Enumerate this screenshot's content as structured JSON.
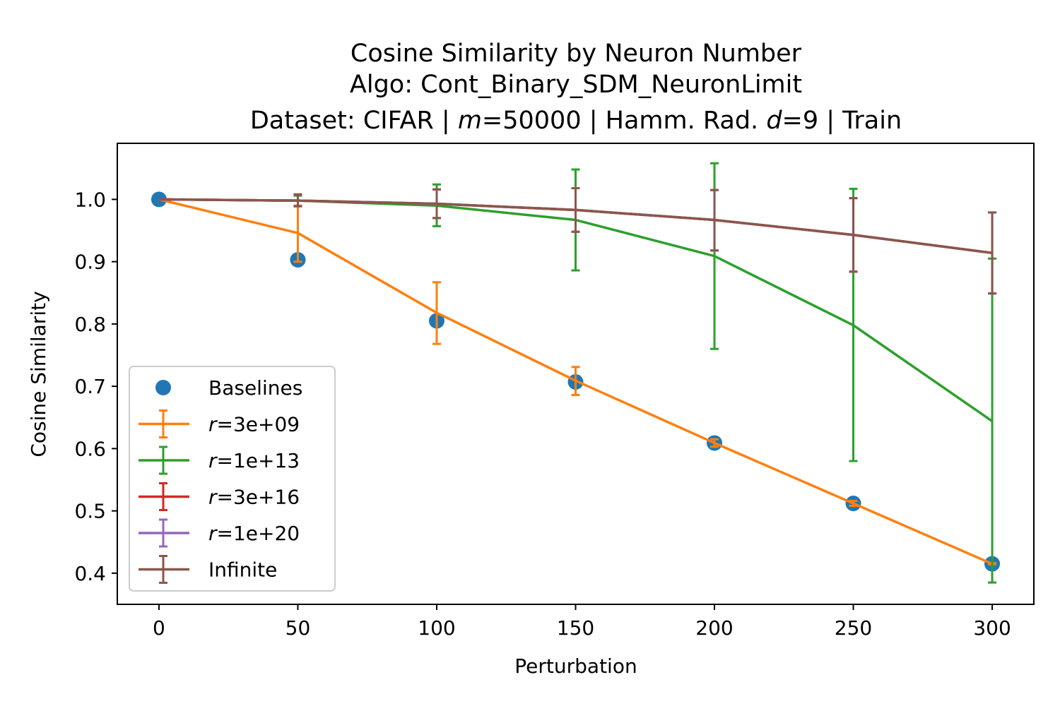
{
  "chart_data": {
    "type": "line",
    "title_lines": [
      "Cosine Similarity by Neuron Number",
      "Algo: Cont_Binary_SDM_NeuronLimit",
      "Dataset: CIFAR | m=50000 | Hamm. Rad. d=9 | Train"
    ],
    "xlabel": "Perturbation",
    "ylabel": "Cosine Similarity",
    "xlim": [
      -15,
      315
    ],
    "ylim": [
      0.35,
      1.09
    ],
    "xticks": [
      0,
      50,
      100,
      150,
      200,
      250,
      300
    ],
    "yticks": [
      0.4,
      0.5,
      0.6,
      0.7,
      0.8,
      0.9,
      1.0
    ],
    "xtick_labels": [
      "0",
      "50",
      "100",
      "150",
      "200",
      "250",
      "300"
    ],
    "ytick_labels": [
      "0.4",
      "0.5",
      "0.6",
      "0.7",
      "0.8",
      "0.9",
      "1.0"
    ],
    "legend_position": "lower-left",
    "x": [
      0,
      50,
      100,
      150,
      200,
      250,
      300
    ],
    "baselines": {
      "name": "Baselines",
      "color": "#1f77b4",
      "values": [
        1.0,
        0.903,
        0.805,
        0.707,
        0.609,
        0.512,
        0.415
      ]
    },
    "series": [
      {
        "name": "r=3e+09",
        "name_italic": "r",
        "name_rest": "=3e+09",
        "color": "#ff7f0e",
        "values": [
          1.0,
          0.946,
          0.818,
          0.709,
          0.609,
          0.512,
          0.415
        ],
        "err_low": [
          1.0,
          0.9,
          0.768,
          0.686,
          0.603,
          0.508,
          0.414
        ],
        "err_high": [
          1.0,
          0.99,
          0.867,
          0.731,
          0.615,
          0.516,
          0.416
        ]
      },
      {
        "name": "r=1e+13",
        "name_italic": "r",
        "name_rest": "=1e+13",
        "color": "#2ca02c",
        "values": [
          1.0,
          0.998,
          0.99,
          0.967,
          0.909,
          0.798,
          0.644
        ],
        "err_low": [
          1.0,
          0.989,
          0.957,
          0.886,
          0.76,
          0.58,
          0.385
        ],
        "err_high": [
          1.0,
          1.006,
          1.024,
          1.048,
          1.058,
          1.017,
          0.905
        ]
      },
      {
        "name": "r=3e+16",
        "name_italic": "r",
        "name_rest": "=3e+16",
        "color": "#d62728",
        "values": [
          1.0,
          0.998,
          0.993,
          0.983,
          0.967,
          0.943,
          0.914
        ],
        "err_low": [
          1.0,
          0.989,
          0.97,
          0.948,
          0.918,
          0.884,
          0.849
        ],
        "err_high": [
          1.0,
          1.008,
          1.016,
          1.018,
          1.015,
          1.002,
          0.979
        ]
      },
      {
        "name": "r=1e+20",
        "name_italic": "r",
        "name_rest": "=1e+20",
        "color": "#9467bd",
        "values": [
          1.0,
          0.998,
          0.993,
          0.983,
          0.967,
          0.943,
          0.914
        ],
        "err_low": [
          1.0,
          0.989,
          0.97,
          0.948,
          0.918,
          0.884,
          0.849
        ],
        "err_high": [
          1.0,
          1.008,
          1.016,
          1.018,
          1.015,
          1.002,
          0.979
        ]
      },
      {
        "name": "Infinite",
        "name_italic": "",
        "name_rest": "Infinite",
        "color": "#8c564b",
        "values": [
          1.0,
          0.998,
          0.993,
          0.983,
          0.967,
          0.943,
          0.914
        ],
        "err_low": [
          1.0,
          0.989,
          0.97,
          0.948,
          0.918,
          0.884,
          0.849
        ],
        "err_high": [
          1.0,
          1.008,
          1.016,
          1.018,
          1.015,
          1.002,
          0.979
        ]
      }
    ]
  }
}
